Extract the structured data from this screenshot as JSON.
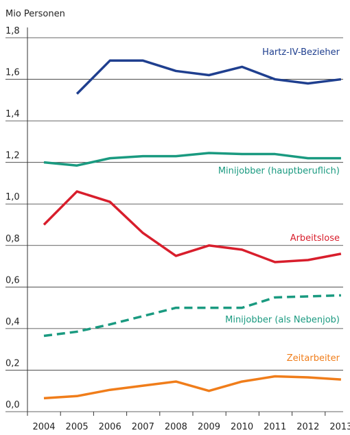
{
  "chart_data": {
    "type": "line",
    "ylabel": "Mio Personen",
    "categories": [
      "2004",
      "2005",
      "2006",
      "2007",
      "2008",
      "2009",
      "2010",
      "2011",
      "2012",
      "2013"
    ],
    "series": [
      {
        "name": "Hartz-IV-Bezieher",
        "color": "#1f3f8f",
        "dashed": false,
        "values": [
          null,
          1.53,
          1.69,
          1.69,
          1.64,
          1.62,
          1.66,
          1.6,
          1.58,
          1.6
        ]
      },
      {
        "name": "Minijobber (hauptberuflich)",
        "color": "#1a9a80",
        "dashed": false,
        "values": [
          1.2,
          1.185,
          1.22,
          1.23,
          1.23,
          1.245,
          1.24,
          1.24,
          1.22,
          1.22
        ]
      },
      {
        "name": "Arbeitslose",
        "color": "#d81e2c",
        "dashed": false,
        "values": [
          0.9,
          1.06,
          1.01,
          0.86,
          0.75,
          0.8,
          0.78,
          0.72,
          0.73,
          0.76
        ]
      },
      {
        "name": "Minijobber (als Nebenjob)",
        "color": "#1a9a80",
        "dashed": true,
        "values": [
          0.365,
          0.385,
          0.42,
          0.46,
          0.5,
          0.5,
          0.5,
          0.55,
          0.555,
          0.56
        ]
      },
      {
        "name": "Zeitarbeiter",
        "color": "#f07d1a",
        "dashed": false,
        "values": [
          0.065,
          0.075,
          0.105,
          0.125,
          0.145,
          0.1,
          0.145,
          0.17,
          0.165,
          0.155
        ]
      }
    ],
    "ylim": [
      0,
      1.8
    ],
    "yticks": [
      {
        "value": 0,
        "label": "0,0"
      },
      {
        "value": 0.2,
        "label": "0,2"
      },
      {
        "value": 0.4,
        "label": "0,4"
      },
      {
        "value": 0.6,
        "label": "0,6"
      },
      {
        "value": 0.8,
        "label": "0,8"
      },
      {
        "value": 1.0,
        "label": "1,0"
      },
      {
        "value": 1.2,
        "label": "1,2"
      },
      {
        "value": 1.4,
        "label": "1,4"
      },
      {
        "value": 1.6,
        "label": "1,6"
      },
      {
        "value": 1.8,
        "label": "1,8"
      }
    ],
    "grid": true
  }
}
